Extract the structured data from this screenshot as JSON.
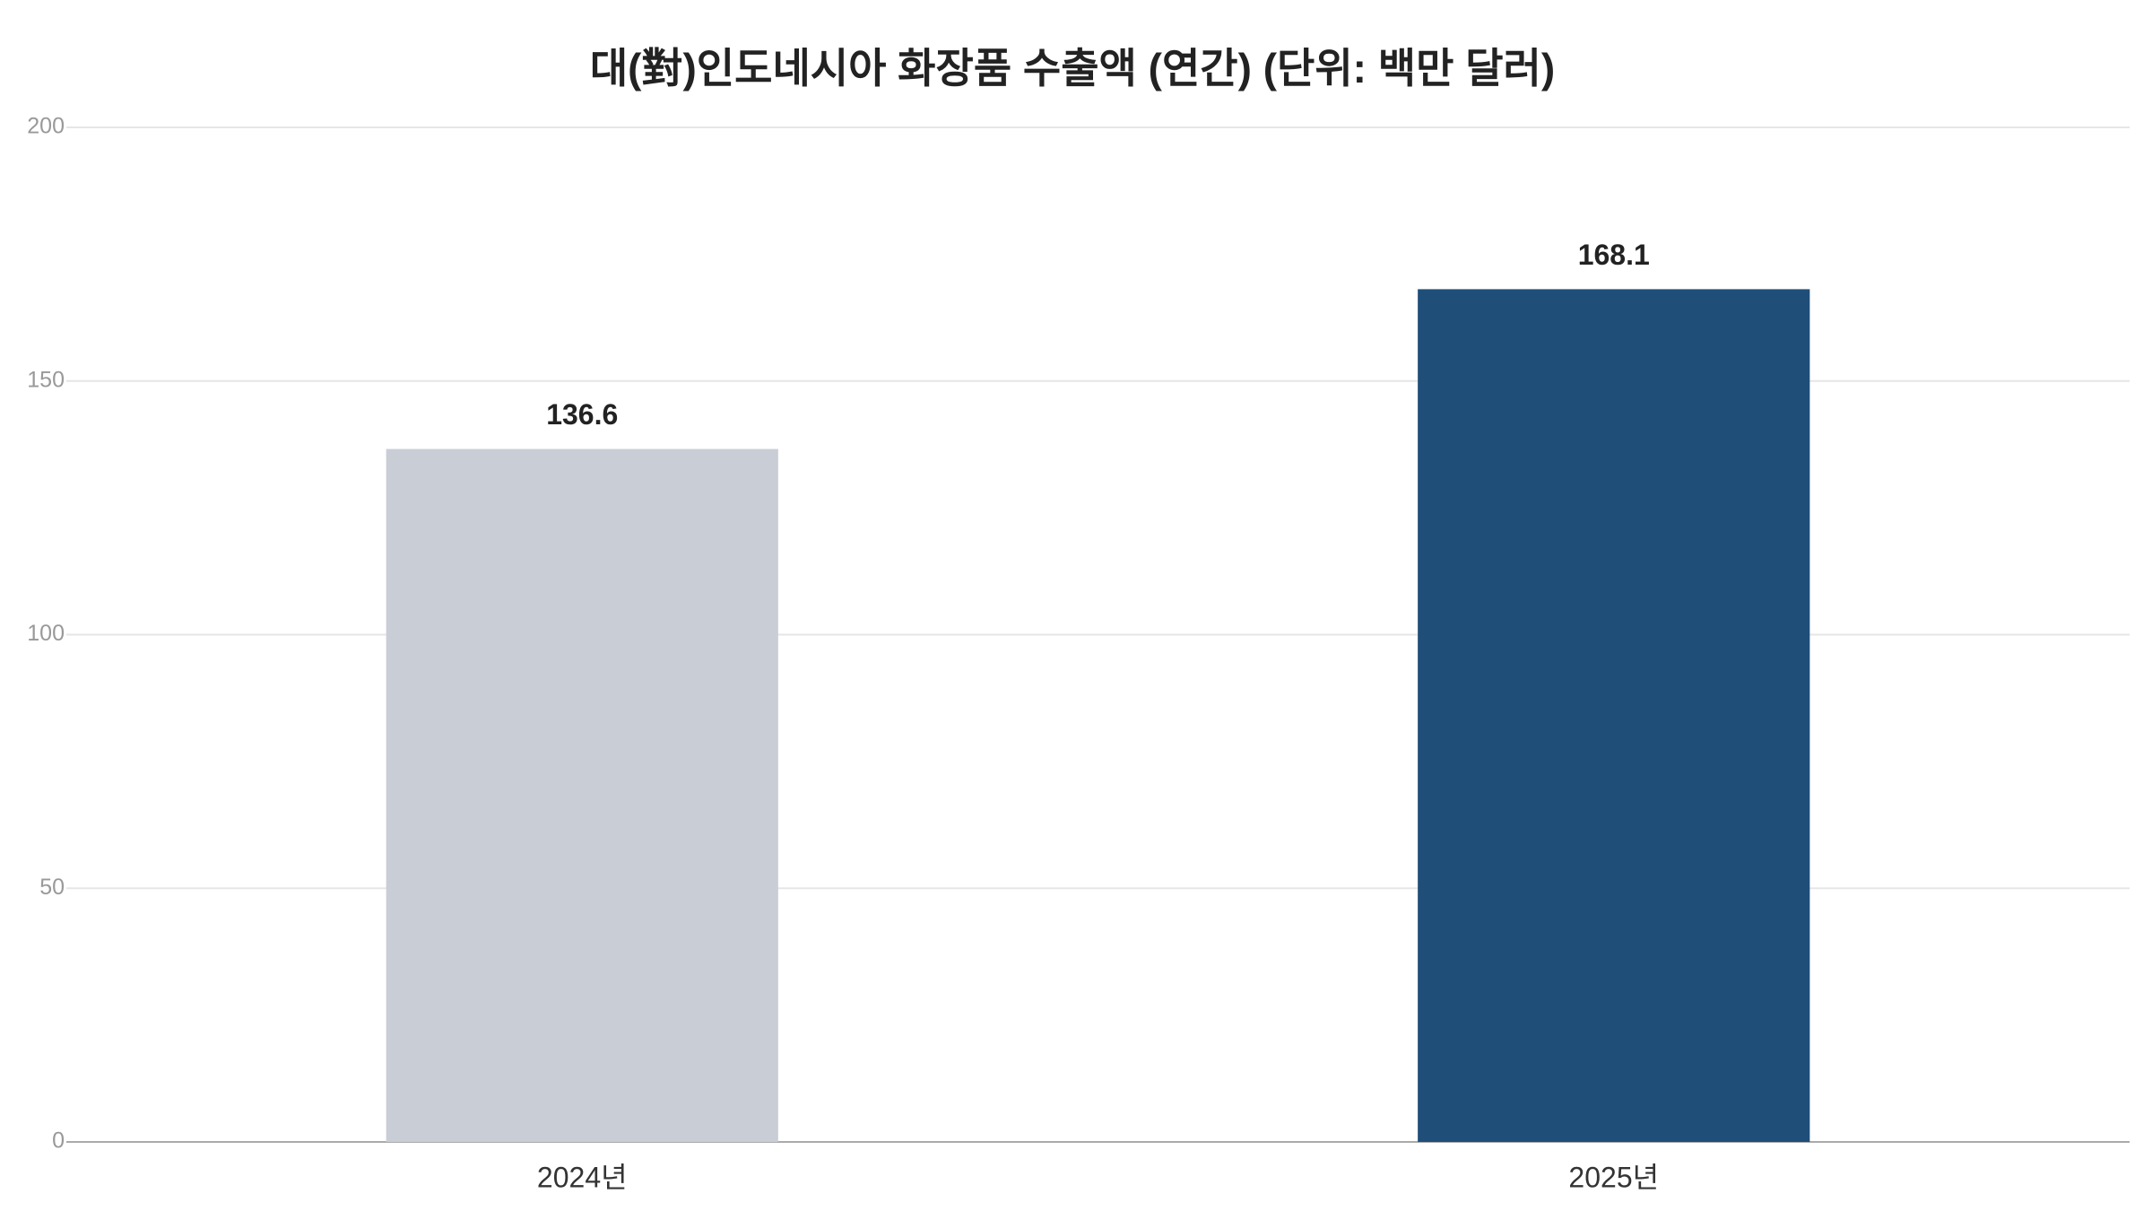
{
  "chart_data": {
    "type": "bar",
    "title": "대(對)인도네시아 화장품 수출액 (연간) (단위: 백만 달러)",
    "categories": [
      "2024년",
      "2025년"
    ],
    "values": [
      136.6,
      168.1
    ],
    "colors": [
      "#c9cdd5",
      "#1f4e79"
    ],
    "ylim": [
      0,
      200
    ],
    "yticks": [
      0,
      50,
      100,
      150,
      200
    ],
    "grid": true
  }
}
